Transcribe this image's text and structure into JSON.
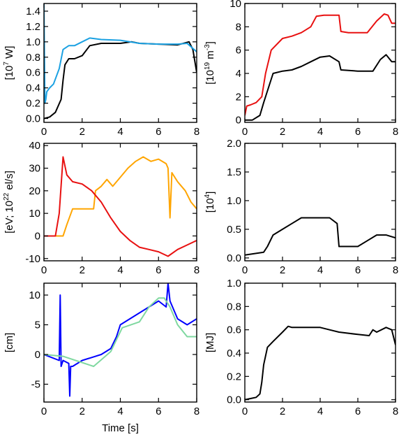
{
  "figure": {
    "xlabel": "Time [s]"
  },
  "chart_data": [
    {
      "type": "line",
      "ylabel_parts": [
        "[10",
        "7",
        " W]"
      ],
      "xlim": [
        0,
        8
      ],
      "ylim": [
        -0.05,
        1.5
      ],
      "xticks": [
        0,
        2,
        4,
        6,
        8
      ],
      "yticks": [
        0.0,
        0.2,
        0.4,
        0.6,
        0.8,
        1.0,
        1.2,
        1.4
      ],
      "ytick_labels": [
        "0.0",
        "0.2",
        "0.4",
        "0.6",
        "0.8",
        "1.0",
        "1.2",
        "1.4"
      ],
      "series": [
        {
          "color": "#000000",
          "x": [
            0,
            0.3,
            0.6,
            0.9,
            1.0,
            1.1,
            1.3,
            1.6,
            2.0,
            2.4,
            3.0,
            4.0,
            4.6,
            5.0,
            6.0,
            7.0,
            7.6,
            7.8,
            8.0
          ],
          "y": [
            0.0,
            0.02,
            0.08,
            0.25,
            0.5,
            0.7,
            0.78,
            0.78,
            0.82,
            0.95,
            0.98,
            0.98,
            1.0,
            0.98,
            0.97,
            0.96,
            1.0,
            0.9,
            0.6
          ]
        },
        {
          "color": "#1ba1e2",
          "x": [
            0,
            0.05,
            0.1,
            0.15,
            0.3,
            0.5,
            0.8,
            1.0,
            1.3,
            1.6,
            2.0,
            2.4,
            3.0,
            4.0,
            5.0,
            6.0,
            7.0,
            7.5,
            8.0
          ],
          "y": [
            1.5,
            0.2,
            0.25,
            0.35,
            0.4,
            0.45,
            0.65,
            0.9,
            0.95,
            0.95,
            1.0,
            1.05,
            1.03,
            1.02,
            0.98,
            0.97,
            0.97,
            0.98,
            0.87
          ]
        }
      ]
    },
    {
      "type": "line",
      "ylabel_parts": [
        "[10",
        "19",
        " m",
        "-3",
        "]"
      ],
      "xlim": [
        0,
        8
      ],
      "ylim": [
        -0.2,
        10
      ],
      "xticks": [
        0,
        2,
        4,
        6,
        8
      ],
      "yticks": [
        0,
        2,
        4,
        6,
        8,
        10
      ],
      "ytick_labels": [
        "0",
        "2",
        "4",
        "6",
        "8",
        "10"
      ],
      "series": [
        {
          "color": "#e81010",
          "x": [
            0,
            0.1,
            0.3,
            0.6,
            0.9,
            1.1,
            1.4,
            2.0,
            2.5,
            3.0,
            3.5,
            3.8,
            4.2,
            5.0,
            5.1,
            5.5,
            6.5,
            7.0,
            7.4,
            7.6,
            7.8,
            8.0
          ],
          "y": [
            0.4,
            1.2,
            1.3,
            1.5,
            2.0,
            4.0,
            6.0,
            7.0,
            7.2,
            7.5,
            8.0,
            8.9,
            9.0,
            9.0,
            7.6,
            7.5,
            7.5,
            8.5,
            9.1,
            9.0,
            8.3,
            8.3
          ]
        },
        {
          "color": "#000000",
          "x": [
            0,
            0.4,
            0.8,
            1.0,
            1.2,
            1.5,
            2.0,
            2.5,
            3.0,
            3.5,
            4.0,
            4.5,
            5.0,
            5.1,
            6.0,
            6.8,
            7.2,
            7.5,
            7.8,
            8.0
          ],
          "y": [
            0.0,
            0.0,
            0.4,
            1.5,
            2.5,
            4.0,
            4.2,
            4.3,
            4.6,
            5.0,
            5.4,
            5.5,
            5.0,
            4.3,
            4.2,
            4.2,
            5.2,
            5.6,
            5.0,
            5.0
          ]
        }
      ]
    },
    {
      "type": "line",
      "ylabel_parts": [
        "[eV; 10",
        "22",
        " el/s]"
      ],
      "xlim": [
        0,
        8
      ],
      "ylim": [
        -11,
        41
      ],
      "xticks": [
        0,
        2,
        4,
        6,
        8
      ],
      "yticks": [
        -10,
        0,
        10,
        20,
        30,
        40
      ],
      "ytick_labels": [
        "-10",
        "0",
        "10",
        "20",
        "30",
        "40"
      ],
      "series": [
        {
          "color": "#ffa500",
          "x": [
            0,
            0.5,
            1.0,
            1.2,
            1.5,
            2.0,
            2.6,
            2.7,
            3.0,
            3.3,
            3.6,
            4.0,
            4.4,
            4.8,
            5.2,
            5.6,
            6.0,
            6.4,
            6.5,
            6.6,
            6.7,
            7.0,
            7.4,
            7.7,
            8.0
          ],
          "y": [
            0,
            0,
            0,
            5,
            12,
            12,
            12,
            20,
            22,
            25,
            22,
            26,
            30,
            33,
            35,
            33,
            34,
            32,
            30,
            8,
            28,
            24,
            20,
            15,
            12
          ]
        },
        {
          "color": "#e81010",
          "x": [
            0,
            0.6,
            0.8,
            1.0,
            1.2,
            1.5,
            2.0,
            2.5,
            3.0,
            3.5,
            4.0,
            4.5,
            5.0,
            5.5,
            6.0,
            6.5,
            7.0,
            7.5,
            8.0
          ],
          "y": [
            0,
            0,
            10,
            35,
            27,
            24,
            23,
            20,
            15,
            8,
            2,
            -2,
            -5,
            -6,
            -7,
            -9,
            -6,
            -4,
            -2
          ]
        }
      ]
    },
    {
      "type": "line",
      "ylabel_parts": [
        "[10",
        "4",
        "]"
      ],
      "xlim": [
        0,
        8
      ],
      "ylim": [
        -0.05,
        2.0
      ],
      "xticks": [
        0,
        2,
        4,
        6,
        8
      ],
      "yticks": [
        0.0,
        0.5,
        1.0,
        1.5,
        2.0
      ],
      "ytick_labels": [
        "0.0",
        "0.5",
        "1.0",
        "1.5",
        "2.0"
      ],
      "series": [
        {
          "color": "#000000",
          "x": [
            0,
            1.0,
            1.2,
            1.5,
            2.0,
            2.5,
            3.0,
            3.5,
            4.0,
            4.5,
            4.9,
            5.0,
            6.0,
            6.5,
            7.0,
            7.5,
            8.0
          ],
          "y": [
            0.05,
            0.1,
            0.2,
            0.4,
            0.5,
            0.6,
            0.7,
            0.7,
            0.7,
            0.7,
            0.6,
            0.2,
            0.2,
            0.3,
            0.4,
            0.4,
            0.35
          ]
        }
      ]
    },
    {
      "type": "line",
      "ylabel_parts": [
        "[cm]"
      ],
      "xlim": [
        0,
        8
      ],
      "ylim": [
        -8,
        12
      ],
      "xticks": [
        0,
        2,
        4,
        6,
        8
      ],
      "yticks": [
        -5,
        0,
        5,
        10
      ],
      "ytick_labels": [
        "-5",
        "0",
        "5",
        "10"
      ],
      "series": [
        {
          "color": "#0000ff",
          "x": [
            0,
            0.8,
            0.85,
            0.9,
            1.0,
            1.3,
            1.35,
            1.4,
            1.5,
            2.0,
            2.5,
            3.0,
            3.5,
            3.8,
            4.0,
            4.5,
            5.0,
            5.5,
            6.0,
            6.4,
            6.5,
            6.6,
            7.0,
            7.5,
            8.0
          ],
          "y": [
            0,
            -1,
            10,
            -2,
            -1,
            -1.5,
            -7,
            -2,
            -2,
            -1,
            -0.5,
            0,
            1,
            3,
            5,
            6,
            7,
            8,
            9,
            8,
            12,
            9,
            6,
            5,
            6
          ]
        },
        {
          "color": "#7fd8a0",
          "x": [
            0,
            1.0,
            2.6,
            3.5,
            4.1,
            5.0,
            5.5,
            6.0,
            6.3,
            6.6,
            7.0,
            7.5,
            8.0
          ],
          "y": [
            0,
            -0.3,
            -2,
            0.5,
            4.5,
            5.5,
            8,
            9.5,
            9.5,
            8,
            5,
            3,
            3
          ]
        }
      ]
    },
    {
      "type": "line",
      "ylabel_parts": [
        "[MJ]"
      ],
      "xlim": [
        0,
        8
      ],
      "ylim": [
        -0.02,
        1.0
      ],
      "xticks": [
        0,
        2,
        4,
        6,
        8
      ],
      "yticks": [
        0.0,
        0.2,
        0.4,
        0.6,
        0.8,
        1.0
      ],
      "ytick_labels": [
        "0.0",
        "0.2",
        "0.4",
        "0.6",
        "0.8",
        "1.0"
      ],
      "series": [
        {
          "color": "#000000",
          "x": [
            0,
            0.3,
            0.6,
            0.8,
            0.9,
            1.0,
            1.2,
            1.5,
            2.0,
            2.3,
            2.5,
            3.0,
            4.0,
            4.5,
            5.0,
            6.0,
            6.6,
            6.8,
            7.0,
            7.5,
            7.8,
            8.0
          ],
          "y": [
            0.0,
            0.01,
            0.02,
            0.05,
            0.15,
            0.3,
            0.45,
            0.5,
            0.58,
            0.63,
            0.62,
            0.62,
            0.62,
            0.6,
            0.58,
            0.56,
            0.55,
            0.6,
            0.58,
            0.62,
            0.6,
            0.47
          ]
        }
      ]
    }
  ]
}
